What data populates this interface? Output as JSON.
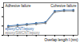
{
  "chart_data": {
    "type": "line",
    "x_label": "Overlap length l (nm)",
    "annotations": [
      "Adhesive failure",
      "Cohesive failure"
    ],
    "x": [
      1,
      2,
      3,
      4,
      5,
      6,
      7,
      8
    ],
    "series": [
      {
        "name": "epoxy/CNT/epoxy",
        "color": "#1f5fa8",
        "marker": "circle",
        "values": [
          1.0,
          1.1,
          1.2,
          1.3,
          1.4,
          2.6,
          2.7,
          2.7
        ]
      },
      {
        "name": "epoxy/SWCNT/epoxy",
        "color": "#7f7f7f",
        "marker": "circle",
        "values": [
          0.9,
          1.0,
          1.1,
          1.2,
          1.3,
          2.5,
          2.6,
          2.6
        ]
      }
    ],
    "xlim": [
      0.5,
      8.5
    ],
    "xticks": [
      1,
      2,
      3,
      4,
      5,
      6,
      7,
      8
    ],
    "ylim": [
      0,
      3.5
    ],
    "yticks": [
      0,
      1,
      2,
      3
    ],
    "legend": "lower left",
    "tick_labels": false,
    "grid": false
  }
}
